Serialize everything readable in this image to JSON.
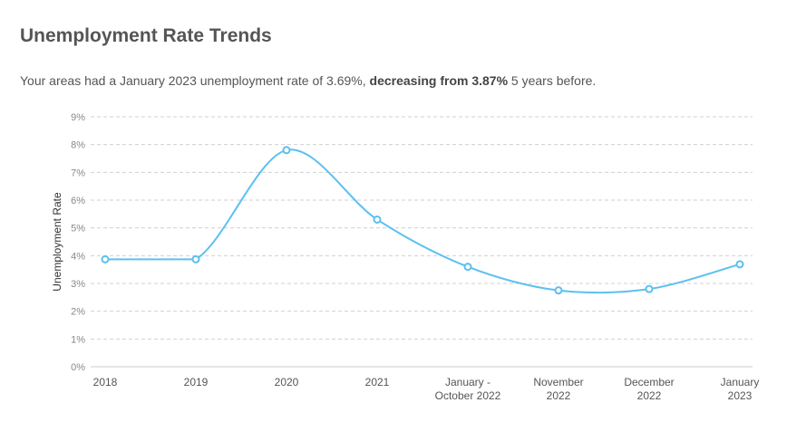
{
  "header": {
    "title": "Unemployment Rate Trends",
    "summary_prefix": "Your areas had a January 2023 unemployment rate of 3.69%,",
    "summary_bold": "decreasing from 3.87%",
    "summary_suffix": "5 years before."
  },
  "chart_data": {
    "type": "line",
    "ylabel": "Unemployment Rate",
    "ylim": [
      0,
      9
    ],
    "yticks": [
      "0%",
      "1%",
      "2%",
      "3%",
      "4%",
      "5%",
      "6%",
      "7%",
      "8%",
      "9%"
    ],
    "categories": [
      [
        "2018"
      ],
      [
        "2019"
      ],
      [
        "2020"
      ],
      [
        "2021"
      ],
      [
        "January -",
        "October 2022"
      ],
      [
        "November",
        "2022"
      ],
      [
        "December",
        "2022"
      ],
      [
        "January",
        "2023"
      ]
    ],
    "values": [
      3.87,
      3.87,
      7.8,
      5.3,
      3.6,
      2.75,
      2.8,
      3.69
    ],
    "grid": true,
    "colors": {
      "line": "#5bc0f0",
      "grid": "#d0d0d0",
      "axis": "#cccccc"
    }
  }
}
